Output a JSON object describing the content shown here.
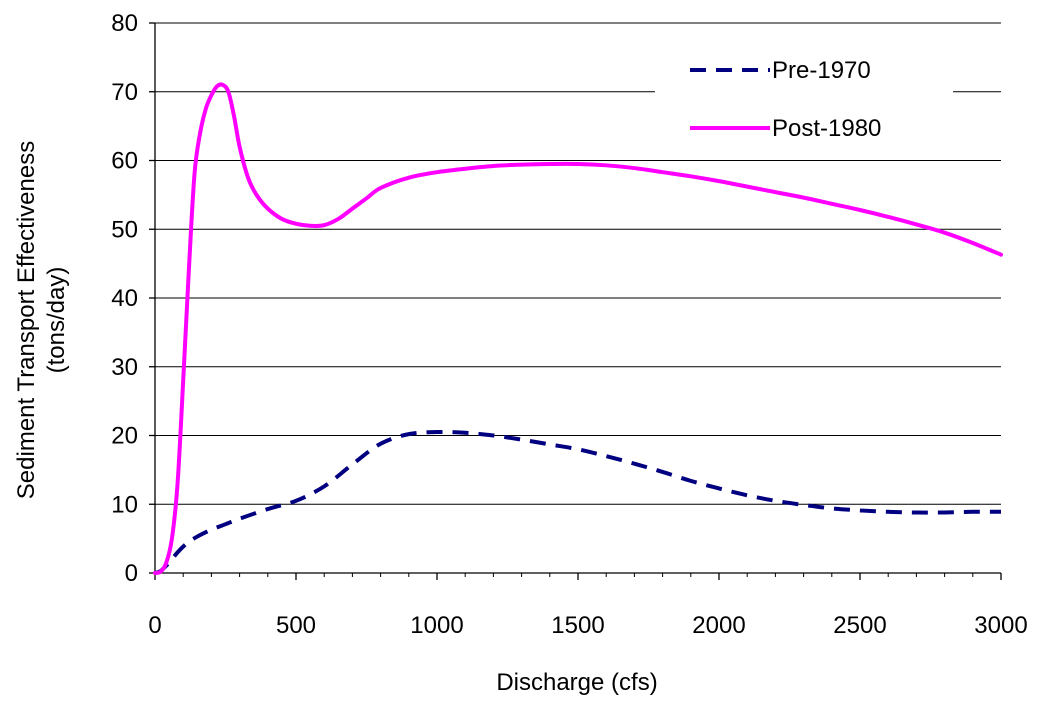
{
  "chart_data": {
    "type": "line",
    "title": "",
    "xlabel": "Discharge (cfs)",
    "ylabel_line1": "Sediment Transport Effectiveness",
    "ylabel_line2": "(tons/day)",
    "xlim": [
      0,
      3000
    ],
    "ylim": [
      0,
      80
    ],
    "xticks": [
      0,
      500,
      1000,
      1500,
      2000,
      2500,
      3000
    ],
    "yticks": [
      0,
      10,
      20,
      30,
      40,
      50,
      60,
      70,
      80
    ],
    "grid": "horizontal",
    "legend_position": "top-right",
    "series": [
      {
        "name": "Pre-1970",
        "color": "#000080",
        "style": "dashed",
        "x": [
          0,
          20,
          50,
          80,
          110,
          150,
          200,
          250,
          300,
          400,
          500,
          600,
          700,
          800,
          900,
          1000,
          1100,
          1200,
          1300,
          1400,
          1500,
          1600,
          1700,
          1800,
          1900,
          2000,
          2100,
          2200,
          2300,
          2400,
          2500,
          2600,
          2700,
          2800,
          2900,
          3000
        ],
        "y": [
          0,
          0.3,
          1.5,
          3.0,
          4.2,
          5.3,
          6.3,
          7.1,
          7.9,
          9.3,
          10.5,
          12.6,
          15.8,
          18.8,
          20.2,
          20.5,
          20.4,
          20.0,
          19.4,
          18.7,
          18.0,
          17.0,
          15.9,
          14.7,
          13.4,
          12.3,
          11.3,
          10.5,
          9.9,
          9.4,
          9.1,
          8.9,
          8.8,
          8.8,
          8.9,
          8.9
        ]
      },
      {
        "name": "Post-1980",
        "color": "#FF00FF",
        "style": "solid",
        "x": [
          0,
          20,
          40,
          60,
          80,
          100,
          120,
          140,
          160,
          180,
          200,
          220,
          240,
          260,
          280,
          300,
          330,
          360,
          400,
          450,
          500,
          550,
          600,
          650,
          700,
          750,
          800,
          900,
          1000,
          1100,
          1200,
          1300,
          1400,
          1500,
          1600,
          1700,
          1800,
          1900,
          2000,
          2100,
          2200,
          2300,
          2400,
          2500,
          2600,
          2700,
          2800,
          2900,
          3000
        ],
        "y": [
          0,
          0.2,
          1.5,
          5.0,
          13.0,
          28.0,
          44.0,
          58.0,
          64.0,
          67.5,
          69.5,
          70.8,
          71.0,
          70.0,
          66.5,
          62.0,
          57.5,
          55.0,
          53.0,
          51.5,
          50.8,
          50.5,
          50.6,
          51.5,
          53.0,
          54.5,
          56.0,
          57.5,
          58.3,
          58.8,
          59.2,
          59.4,
          59.5,
          59.5,
          59.3,
          58.9,
          58.3,
          57.7,
          57.0,
          56.2,
          55.4,
          54.6,
          53.7,
          52.8,
          51.8,
          50.7,
          49.5,
          48.0,
          46.3
        ]
      }
    ]
  }
}
